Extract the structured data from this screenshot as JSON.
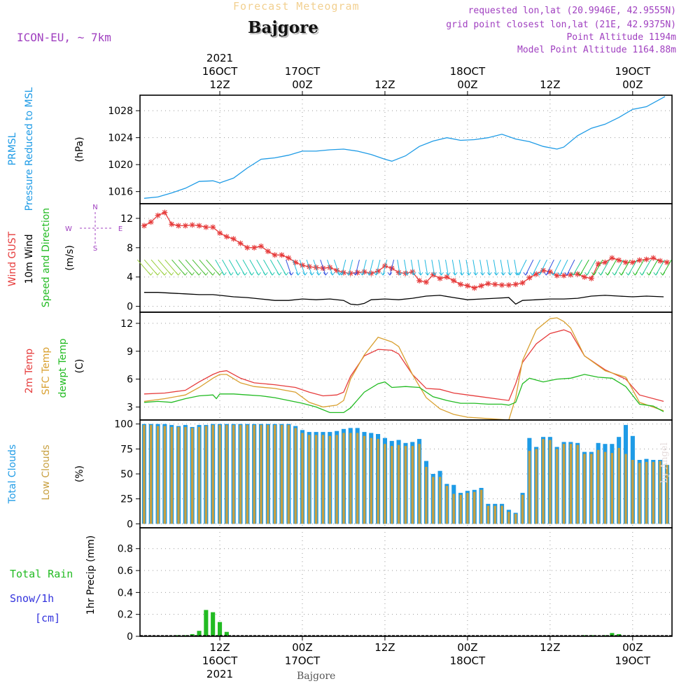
{
  "header": {
    "product_title": "Forecast Meteogram",
    "location": "Bajgore",
    "model": "ICON-EU, ~ 7km",
    "requested": "requested lon,lat (20.9946E, 42.9555N)",
    "grid_point": "grid point closest lon,lat (21E, 42.9375N)",
    "point_altitude": "Point Altitude 1194m",
    "model_altitude": "Model Point Altitude 1164.88m",
    "footer_location": "Bajgore",
    "credit": "by Angel"
  },
  "colors": {
    "pressure": "#1e9be6",
    "gust": "#e63c3c",
    "wind": "#000000",
    "wind_arrows": "#22bb22",
    "temp2m": "#e63c3c",
    "sfc_temp": "#d9a030",
    "dewpt": "#22bb22",
    "total_clouds": "#1e9be6",
    "low_clouds": "#c8a040",
    "rain": "#22bb22",
    "snow": "#3333dd",
    "accent_purple": "#a040c0"
  },
  "time_axis": {
    "top": [
      {
        "t": 0,
        "lines": [
          "2021",
          "16OCT",
          "12Z"
        ]
      },
      {
        "t": 12,
        "lines": [
          "17OCT",
          "00Z"
        ]
      },
      {
        "t": 24,
        "lines": [
          "12Z"
        ]
      },
      {
        "t": 36,
        "lines": [
          "18OCT",
          "00Z"
        ]
      },
      {
        "t": 48,
        "lines": [
          "12Z"
        ]
      },
      {
        "t": 60,
        "lines": [
          "19OCT",
          "00Z"
        ]
      }
    ],
    "bottom": [
      {
        "t": 0,
        "lines": [
          "12Z",
          "16OCT",
          "2021"
        ]
      },
      {
        "t": 12,
        "lines": [
          "00Z",
          "17OCT"
        ]
      },
      {
        "t": 24,
        "lines": [
          "12Z"
        ]
      },
      {
        "t": 36,
        "lines": [
          "00Z",
          "18OCT"
        ]
      },
      {
        "t": 48,
        "lines": [
          "12Z"
        ]
      },
      {
        "t": 60,
        "lines": [
          "00Z",
          "19OCT"
        ]
      }
    ]
  },
  "chart_data": [
    {
      "type": "line",
      "title": "PRMSL Pressure Reduced to MSL",
      "label_lines": [
        [
          "PRMSL",
          "pressure"
        ],
        [
          "Pressure Reduced to MSL",
          "pressure"
        ]
      ],
      "ylabel": "(hPa)",
      "ylim": [
        1014.2,
        1030.3
      ],
      "yticks": [
        1016,
        1020,
        1024,
        1028
      ],
      "series": [
        {
          "name": "PRMSL",
          "color_key": "pressure",
          "x": [
            -11,
            -9,
            -7,
            -5,
            -3,
            -1,
            0,
            2,
            4,
            6,
            8,
            10,
            12,
            14,
            16,
            18,
            20,
            22,
            24,
            25,
            27,
            29,
            31,
            33,
            35,
            37,
            39,
            41,
            43,
            45,
            47,
            49,
            50,
            52,
            54,
            56,
            58,
            60,
            62,
            64.7
          ],
          "y": [
            1015.0,
            1015.2,
            1015.8,
            1016.5,
            1017.5,
            1017.6,
            1017.3,
            1018.0,
            1019.5,
            1020.8,
            1021.0,
            1021.4,
            1022.0,
            1022.0,
            1022.2,
            1022.3,
            1022.0,
            1021.5,
            1020.8,
            1020.5,
            1021.3,
            1022.7,
            1023.5,
            1024.0,
            1023.6,
            1023.7,
            1024.0,
            1024.5,
            1023.8,
            1023.4,
            1022.7,
            1022.3,
            1022.6,
            1024.3,
            1025.4,
            1026.0,
            1027.0,
            1028.2,
            1028.6,
            1030.1
          ]
        }
      ]
    },
    {
      "type": "line",
      "title": "Wind GUST 10m Wind Speed and Direction",
      "label_lines": [
        [
          "Wind GUST",
          "gust"
        ],
        [
          "10m Wind",
          "wind"
        ],
        [
          "Speed and Direction",
          "wind_arrows"
        ]
      ],
      "ylabel": "(m/s)",
      "ylim": [
        -0.8,
        14
      ],
      "yticks": [
        0,
        4,
        8,
        12
      ],
      "compass": {
        "n": "N",
        "e": "E",
        "s": "S",
        "w": "W"
      },
      "series": [
        {
          "name": "Wind GUST",
          "color_key": "gust",
          "marker": "star",
          "x": [
            -11,
            -10,
            -9,
            -8,
            -7,
            -6,
            -5,
            -4,
            -3,
            -2,
            -1,
            0,
            1,
            2,
            3,
            4,
            5,
            6,
            7,
            8,
            9,
            10,
            11,
            12,
            13,
            14,
            15,
            16,
            17,
            18,
            19,
            20,
            21,
            22,
            23,
            24,
            25,
            26,
            27,
            28,
            29,
            30,
            31,
            32,
            33,
            34,
            35,
            36,
            37,
            38,
            39,
            40,
            41,
            42,
            43,
            44,
            45,
            46,
            47,
            48,
            49,
            50,
            51,
            52,
            53,
            54,
            55,
            56,
            57,
            58,
            59,
            60,
            61,
            62,
            63,
            64,
            65
          ],
          "y": [
            11.0,
            11.5,
            12.4,
            12.8,
            11.2,
            11.0,
            11.0,
            11.1,
            11.0,
            10.8,
            10.8,
            10.0,
            9.5,
            9.2,
            8.6,
            8.0,
            8.0,
            8.2,
            7.5,
            7.0,
            7.0,
            6.6,
            6.0,
            5.6,
            5.4,
            5.3,
            5.2,
            5.3,
            4.9,
            4.6,
            4.5,
            4.6,
            4.7,
            4.5,
            4.8,
            5.5,
            5.2,
            4.6,
            4.5,
            4.7,
            3.5,
            3.3,
            4.3,
            3.8,
            4.0,
            3.5,
            3.0,
            2.8,
            2.5,
            2.8,
            3.1,
            3.0,
            2.9,
            2.9,
            3.0,
            3.2,
            3.9,
            4.4,
            4.9,
            4.7,
            4.2,
            4.2,
            4.3,
            4.4,
            4.0,
            3.8,
            5.8,
            6.0,
            6.6,
            6.3,
            6.0,
            6.0,
            6.3,
            6.4,
            6.6,
            6.2,
            6.0
          ]
        },
        {
          "name": "10m Wind",
          "color_key": "wind",
          "x": [
            -11,
            -9,
            -7,
            -5,
            -3,
            -1,
            0,
            2,
            4,
            6,
            8,
            10,
            12,
            14,
            16,
            18,
            19,
            20,
            21,
            22,
            24,
            26,
            28,
            30,
            32,
            34,
            36,
            38,
            40,
            42,
            43,
            44,
            46,
            48,
            50,
            52,
            54,
            56,
            58,
            60,
            62,
            64.5
          ],
          "y": [
            1.9,
            1.9,
            1.8,
            1.7,
            1.6,
            1.6,
            1.5,
            1.3,
            1.2,
            1.0,
            0.8,
            0.8,
            1.0,
            0.9,
            1.0,
            0.8,
            0.3,
            0.2,
            0.4,
            0.9,
            1.0,
            0.9,
            1.1,
            1.4,
            1.5,
            1.2,
            0.9,
            1.0,
            1.1,
            1.2,
            0.3,
            0.8,
            0.9,
            1.0,
            1.0,
            1.1,
            1.4,
            1.5,
            1.4,
            1.3,
            1.4,
            1.3
          ]
        }
      ]
    },
    {
      "type": "line",
      "title": "2m Temp SFC Temp dewpt Temp",
      "label_lines": [
        [
          "2m Temp",
          "temp2m"
        ],
        [
          "SFC Temp",
          "sfc_temp"
        ],
        [
          "dewpt Temp",
          "dewpt"
        ]
      ],
      "ylabel": "(C)",
      "ylim": [
        1.6,
        13.2
      ],
      "yticks": [
        3,
        6,
        9,
        12
      ],
      "series": [
        {
          "name": "2m Temp",
          "color_key": "temp2m",
          "x": [
            -11,
            -8,
            -5,
            -3,
            -1,
            0,
            1,
            3,
            5,
            8,
            11,
            13,
            15,
            17,
            18,
            19,
            21,
            23,
            25,
            26,
            28,
            30,
            32,
            34,
            36,
            38,
            40,
            42,
            43,
            44,
            46,
            48,
            50,
            51,
            53,
            56,
            59,
            61,
            64.5
          ],
          "y": [
            4.4,
            4.5,
            4.8,
            5.7,
            6.5,
            6.8,
            6.9,
            6.1,
            5.6,
            5.4,
            5.1,
            4.6,
            4.2,
            4.3,
            4.6,
            6.3,
            8.5,
            9.2,
            9.1,
            8.7,
            6.5,
            5.0,
            4.9,
            4.5,
            4.3,
            4.1,
            3.9,
            3.7,
            5.5,
            7.8,
            9.8,
            10.9,
            11.3,
            11.0,
            8.5,
            7.0,
            6.0,
            4.3,
            3.6
          ]
        },
        {
          "name": "SFC Temp",
          "color_key": "sfc_temp",
          "x": [
            -11,
            -8,
            -5,
            -3,
            -1,
            0,
            1,
            3,
            5,
            8,
            11,
            13,
            15,
            17,
            18,
            19,
            21,
            23,
            25,
            26,
            28,
            30,
            32,
            34,
            36,
            38,
            40,
            42,
            43,
            44,
            46,
            48,
            49,
            50,
            51,
            53,
            56,
            59,
            61,
            64.5
          ],
          "y": [
            3.6,
            3.9,
            4.3,
            5.1,
            6.1,
            6.5,
            6.5,
            5.6,
            5.2,
            5.0,
            4.6,
            3.5,
            3.0,
            3.2,
            3.7,
            6.0,
            8.6,
            10.5,
            10.0,
            9.5,
            6.5,
            4.0,
            2.8,
            2.2,
            1.9,
            1.8,
            1.7,
            1.6,
            4.0,
            8.0,
            11.3,
            12.5,
            12.6,
            12.2,
            11.5,
            8.5,
            6.9,
            6.2,
            3.5,
            2.6
          ]
        },
        {
          "name": "dewpt Temp",
          "color_key": "dewpt",
          "x": [
            -11,
            -9,
            -7,
            -5,
            -3,
            -1,
            -0.5,
            0,
            2,
            4,
            6,
            8,
            10,
            12,
            14,
            16,
            18,
            19,
            21,
            23,
            24,
            25,
            27,
            29,
            31,
            33,
            35,
            37,
            39,
            41,
            42,
            43,
            44,
            45,
            47,
            49,
            51,
            53,
            55,
            57,
            59,
            61,
            63,
            64.5
          ],
          "y": [
            3.5,
            3.6,
            3.5,
            3.9,
            4.2,
            4.3,
            3.9,
            4.4,
            4.4,
            4.3,
            4.2,
            4.0,
            3.7,
            3.4,
            3.0,
            2.4,
            2.4,
            2.9,
            4.6,
            5.5,
            5.7,
            5.1,
            5.2,
            5.1,
            4.1,
            3.7,
            3.4,
            3.4,
            3.3,
            3.3,
            3.2,
            3.5,
            5.5,
            6.1,
            5.7,
            6.0,
            6.1,
            6.5,
            6.2,
            6.1,
            5.2,
            3.3,
            3.1,
            2.5
          ]
        }
      ]
    },
    {
      "type": "bar",
      "title": "Total Clouds Low Clouds",
      "label_lines": [
        [
          "Total Clouds",
          "total_clouds"
        ],
        [
          "Low Clouds",
          "low_clouds"
        ]
      ],
      "ylabel": "(%)",
      "ylim": [
        -4,
        104
      ],
      "yticks": [
        0,
        25,
        50,
        75,
        100
      ],
      "x": [
        -11,
        -10,
        -9,
        -8,
        -7,
        -6,
        -5,
        -4,
        -3,
        -2,
        -1,
        0,
        1,
        2,
        3,
        4,
        5,
        6,
        7,
        8,
        9,
        10,
        11,
        12,
        13,
        14,
        15,
        16,
        17,
        18,
        19,
        20,
        21,
        22,
        23,
        24,
        25,
        26,
        27,
        28,
        29,
        30,
        31,
        32,
        33,
        34,
        35,
        36,
        37,
        38,
        39,
        40,
        41,
        42,
        43,
        44,
        45,
        46,
        47,
        48,
        49,
        50,
        51,
        52,
        53,
        54,
        55,
        56,
        57,
        58,
        59,
        60,
        61,
        62,
        63,
        64,
        65
      ],
      "series": [
        {
          "name": "Total Clouds",
          "color_key": "total_clouds",
          "values": [
            100,
            100,
            100,
            100,
            99,
            98,
            99,
            97,
            99,
            99,
            100,
            100,
            100,
            100,
            100,
            100,
            100,
            100,
            100,
            100,
            100,
            100,
            98,
            94,
            92,
            92,
            92,
            92,
            93,
            95,
            96,
            96,
            92,
            91,
            90,
            86,
            83,
            84,
            81,
            82,
            85,
            63,
            50,
            53,
            40,
            39,
            31,
            33,
            34,
            36,
            20,
            20,
            20,
            14,
            11,
            31,
            86,
            77,
            87,
            87,
            77,
            82,
            82,
            81,
            72,
            72,
            81,
            80,
            80,
            87,
            99,
            88,
            64,
            65,
            64,
            64,
            59
          ]
        },
        {
          "name": "Low Clouds",
          "color_key": "low_clouds",
          "values": [
            99,
            99,
            98,
            98,
            97,
            97,
            97,
            96,
            97,
            98,
            99,
            99,
            99,
            99,
            99,
            99,
            99,
            99,
            99,
            99,
            99,
            99,
            96,
            91,
            89,
            89,
            89,
            88,
            89,
            91,
            91,
            91,
            88,
            86,
            85,
            80,
            78,
            79,
            78,
            78,
            80,
            57,
            47,
            47,
            38,
            30,
            29,
            31,
            32,
            34,
            18,
            18,
            18,
            12,
            10,
            29,
            73,
            75,
            85,
            84,
            75,
            80,
            80,
            79,
            70,
            70,
            74,
            72,
            71,
            76,
            70,
            64,
            61,
            62,
            62,
            63,
            59
          ]
        }
      ]
    },
    {
      "type": "bar",
      "title": "1hr Precip (mm)",
      "label_lines": [
        [
          "Total  Rain",
          "rain"
        ],
        [
          "Snow/1h",
          "snow"
        ],
        [
          "[cm]",
          "snow"
        ]
      ],
      "ylabel": "1hr Precip (mm)",
      "ylim": [
        0,
        0.99
      ],
      "yticks": [
        0,
        0.2,
        0.4,
        0.6,
        0.8
      ],
      "ytick_labels": [
        "0",
        "0.2",
        "0.4",
        "0.6",
        "0.8"
      ],
      "x": [
        -6,
        -5,
        -4,
        -3,
        -2,
        -1,
        0,
        1,
        53,
        54,
        56,
        57,
        58
      ],
      "series": [
        {
          "name": "Total Rain",
          "color_key": "rain",
          "values": [
            0.01,
            0.01,
            0.02,
            0.05,
            0.24,
            0.22,
            0.13,
            0.04,
            0.01,
            0.01,
            0.01,
            0.03,
            0.02
          ]
        }
      ]
    }
  ]
}
